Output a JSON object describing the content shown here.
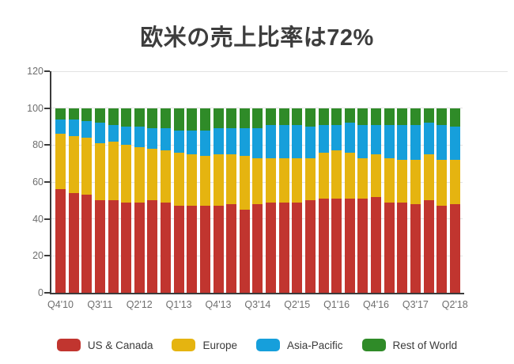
{
  "title": "欧米の売上比率は72%",
  "colors": {
    "us_canada": "#c1352f",
    "europe": "#e5b410",
    "asia_pacific": "#169fdb",
    "rest_of_world": "#2f8b28",
    "axis": "#3b3b3b",
    "grid": "#e2e2e2",
    "tick_label": "#6e6e6e",
    "title_text": "#3d3d3d",
    "background": "#ffffff"
  },
  "chart_data": {
    "type": "bar",
    "stacked": true,
    "unit": "percent_of_total",
    "title": "欧米の売上比率は72%",
    "xlabel": "",
    "ylabel": "",
    "ylim": [
      0,
      120
    ],
    "y_ticks": [
      0,
      20,
      40,
      60,
      80,
      100,
      120
    ],
    "grid": true,
    "legend_position": "bottom",
    "categories": [
      "Q4'10",
      "Q1'11",
      "Q2'11",
      "Q3'11",
      "Q4'11",
      "Q1'12",
      "Q2'12",
      "Q3'12",
      "Q4'12",
      "Q1'13",
      "Q2'13",
      "Q3'13",
      "Q4'13",
      "Q1'14",
      "Q2'14",
      "Q3'14",
      "Q4'14",
      "Q1'15",
      "Q2'15",
      "Q3'15",
      "Q4'15",
      "Q1'16",
      "Q2'16",
      "Q3'16",
      "Q4'16",
      "Q1'17",
      "Q2'17",
      "Q3'17",
      "Q4'17",
      "Q1'18",
      "Q2'18"
    ],
    "x_tick_labels": [
      "Q4'10",
      "Q3'11",
      "Q2'12",
      "Q1'13",
      "Q4'13",
      "Q3'14",
      "Q2'15",
      "Q1'16",
      "Q4'16",
      "Q3'17",
      "Q2'18"
    ],
    "series": [
      {
        "name": "US & Canada",
        "color": "#c1352f",
        "values": [
          56,
          54,
          53,
          50,
          50,
          49,
          49,
          50,
          49,
          47,
          47,
          47,
          47,
          48,
          45,
          48,
          49,
          49,
          49,
          50,
          51,
          51,
          51,
          51,
          52,
          49,
          49,
          48,
          50,
          47,
          48
        ]
      },
      {
        "name": "Europe",
        "color": "#e5b410",
        "values": [
          30,
          31,
          31,
          31,
          32,
          31,
          30,
          28,
          28,
          29,
          28,
          27,
          28,
          27,
          29,
          25,
          24,
          24,
          24,
          23,
          25,
          26,
          25,
          22,
          23,
          24,
          23,
          24,
          25,
          25,
          24
        ]
      },
      {
        "name": "Asia-Pacific",
        "color": "#169fdb",
        "values": [
          8,
          9,
          9,
          11,
          9,
          10,
          11,
          11,
          12,
          12,
          13,
          14,
          14,
          14,
          15,
          16,
          18,
          18,
          18,
          17,
          15,
          14,
          16,
          18,
          16,
          18,
          19,
          19,
          17,
          19,
          18
        ]
      },
      {
        "name": "Rest of World",
        "color": "#2f8b28",
        "values": [
          6,
          6,
          7,
          8,
          9,
          10,
          10,
          11,
          11,
          12,
          12,
          12,
          11,
          11,
          11,
          11,
          9,
          9,
          9,
          10,
          9,
          9,
          8,
          9,
          9,
          9,
          9,
          9,
          8,
          9,
          10
        ]
      }
    ]
  }
}
